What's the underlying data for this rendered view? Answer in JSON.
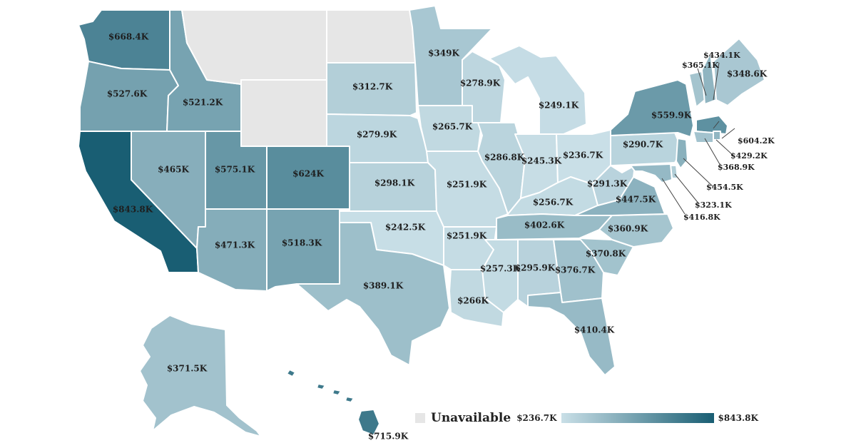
{
  "legend": {
    "unavailable_label": "Unavailable",
    "min_label": "$236.7K",
    "max_label": "$843.8K",
    "min_value": 236.7,
    "max_value": 843.8,
    "color_low": "#c9dfe7",
    "color_high": "#195e73",
    "unavailable_color": "#e6e6e6"
  },
  "states": [
    {
      "id": "WA",
      "value": 668.4,
      "label": "$668.4K"
    },
    {
      "id": "OR",
      "value": 527.6,
      "label": "$527.6K"
    },
    {
      "id": "CA",
      "value": 843.8,
      "label": "$843.8K"
    },
    {
      "id": "ID",
      "value": 521.2,
      "label": "$521.2K"
    },
    {
      "id": "NV",
      "value": 465,
      "label": "$465K"
    },
    {
      "id": "UT",
      "value": 575.1,
      "label": "$575.1K"
    },
    {
      "id": "AZ",
      "value": 471.3,
      "label": "$471.3K"
    },
    {
      "id": "MT",
      "value": null,
      "label": ""
    },
    {
      "id": "WY",
      "value": null,
      "label": ""
    },
    {
      "id": "CO",
      "value": 624,
      "label": "$624K"
    },
    {
      "id": "NM",
      "value": 518.3,
      "label": "$518.3K"
    },
    {
      "id": "ND",
      "value": null,
      "label": ""
    },
    {
      "id": "SD",
      "value": 312.7,
      "label": "$312.7K"
    },
    {
      "id": "NE",
      "value": 279.9,
      "label": "$279.9K"
    },
    {
      "id": "KS",
      "value": 298.1,
      "label": "$298.1K"
    },
    {
      "id": "OK",
      "value": 242.5,
      "label": "$242.5K"
    },
    {
      "id": "TX",
      "value": 389.1,
      "label": "$389.1K"
    },
    {
      "id": "MN",
      "value": 349,
      "label": "$349K"
    },
    {
      "id": "IA",
      "value": 265.7,
      "label": "$265.7K"
    },
    {
      "id": "MO",
      "value": 251.9,
      "label": "$251.9K"
    },
    {
      "id": "AR",
      "value": 251.9,
      "label": "$251.9K"
    },
    {
      "id": "LA",
      "value": 266,
      "label": "$266K"
    },
    {
      "id": "WI",
      "value": 278.9,
      "label": "$278.9K"
    },
    {
      "id": "IL",
      "value": 286.8,
      "label": "$286.8K"
    },
    {
      "id": "MI",
      "value": 249.1,
      "label": "$249.1K"
    },
    {
      "id": "IN",
      "value": 245.3,
      "label": "$245.3K"
    },
    {
      "id": "OH",
      "value": 236.7,
      "label": "$236.7K"
    },
    {
      "id": "KY",
      "value": 256.7,
      "label": "$256.7K"
    },
    {
      "id": "TN",
      "value": 402.6,
      "label": "$402.6K"
    },
    {
      "id": "MS",
      "value": 257.3,
      "label": "$257.3K"
    },
    {
      "id": "AL",
      "value": 295.9,
      "label": "$295.9K"
    },
    {
      "id": "GA",
      "value": 376.7,
      "label": "$376.7K"
    },
    {
      "id": "FL",
      "value": 410.4,
      "label": "$410.4K"
    },
    {
      "id": "SC",
      "value": 370.8,
      "label": "$370.8K"
    },
    {
      "id": "NC",
      "value": 360.9,
      "label": "$360.9K"
    },
    {
      "id": "VA",
      "value": 447.5,
      "label": "$447.5K"
    },
    {
      "id": "WV",
      "value": 291.3,
      "label": "$291.3K"
    },
    {
      "id": "PA",
      "value": 290.7,
      "label": "$290.7K"
    },
    {
      "id": "NY",
      "value": 559.9,
      "label": "$559.9K"
    },
    {
      "id": "VT",
      "value": 365.1,
      "label": "$365.1K"
    },
    {
      "id": "NH",
      "value": 434.1,
      "label": "$434.1K"
    },
    {
      "id": "ME",
      "value": 348.6,
      "label": "$348.6K"
    },
    {
      "id": "MA",
      "value": 604.2,
      "label": "$604.2K"
    },
    {
      "id": "RI",
      "value": 429.2,
      "label": "$429.2K"
    },
    {
      "id": "CT",
      "value": 368.9,
      "label": "$368.9K"
    },
    {
      "id": "NJ",
      "value": 454.5,
      "label": "$454.5K"
    },
    {
      "id": "DE",
      "value": 323.1,
      "label": "$323.1K"
    },
    {
      "id": "MD",
      "value": 416.8,
      "label": "$416.8K"
    },
    {
      "id": "AK",
      "value": 371.5,
      "label": "$371.5K"
    },
    {
      "id": "HI",
      "value": 715.9,
      "label": "$715.9K"
    }
  ]
}
